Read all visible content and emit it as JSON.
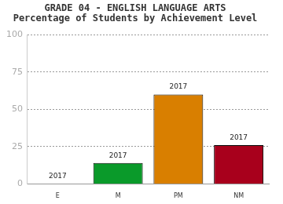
{
  "chart_data": {
    "type": "bar",
    "title": [
      "GRADE 04 - ENGLISH LANGUAGE ARTS",
      "Percentage of Students by Achievement Level"
    ],
    "categories": [
      "E",
      "M",
      "PM",
      "NM"
    ],
    "series": [
      {
        "name": "2017",
        "values": [
          0,
          14,
          60,
          26
        ],
        "colors": [
          "#3366cc",
          "#0a9a2a",
          "#d97f00",
          "#a8001c"
        ]
      }
    ],
    "ylim": [
      0,
      100
    ],
    "yticks": [
      0,
      25,
      50,
      75,
      100
    ],
    "grid": true
  }
}
